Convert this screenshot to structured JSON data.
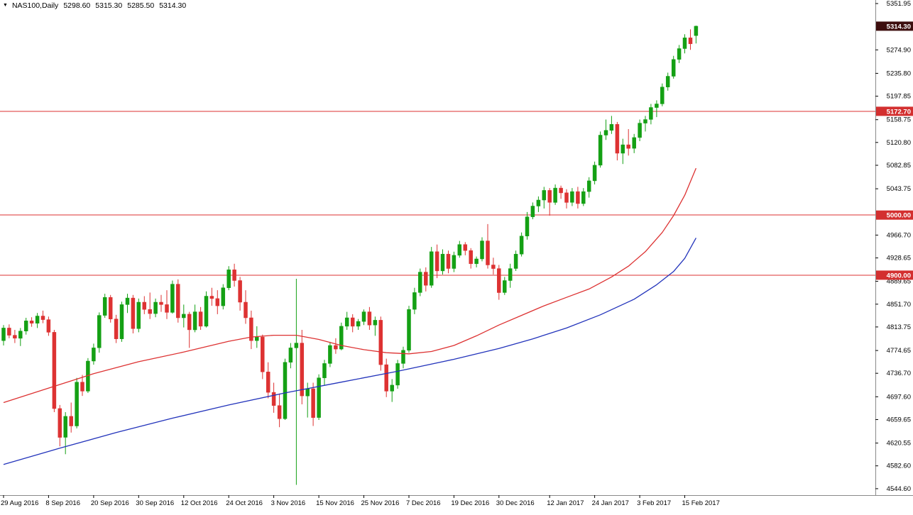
{
  "legend": {
    "marker_icon": "▼",
    "symbol": "NAS100,Daily",
    "open": "5298.60",
    "high": "5315.30",
    "low": "5285.50",
    "close": "5314.30"
  },
  "colors": {
    "background": "#ffffff",
    "up": "#14a014",
    "down": "#dd3232",
    "ma_fast": "#dd3232",
    "ma_slow": "#2233bb",
    "level_line": "#dd3232",
    "level_box_bg": "#d32f2f",
    "price_box_bg": "#3d0e0e",
    "axis_text": "#000000",
    "axis_line": "#8a8a8a"
  },
  "axis": {
    "y_ticks": [
      {
        "value": 5351.95,
        "label": "5351.95"
      },
      {
        "value": 5274.9,
        "label": "5274.90"
      },
      {
        "value": 5235.8,
        "label": "5235.80"
      },
      {
        "value": 5197.85,
        "label": "5197.85"
      },
      {
        "value": 5158.75,
        "label": "5158.75"
      },
      {
        "value": 5120.8,
        "label": "5120.80"
      },
      {
        "value": 5082.85,
        "label": "5082.85"
      },
      {
        "value": 5043.75,
        "label": "5043.75"
      },
      {
        "value": 4966.7,
        "label": "4966.70"
      },
      {
        "value": 4928.65,
        "label": "4928.65"
      },
      {
        "value": 4889.65,
        "label": "4889.65"
      },
      {
        "value": 4851.7,
        "label": "4851.70"
      },
      {
        "value": 4813.75,
        "label": "4813.75"
      },
      {
        "value": 4774.65,
        "label": "4774.65"
      },
      {
        "value": 4736.7,
        "label": "4736.70"
      },
      {
        "value": 4697.6,
        "label": "4697.60"
      },
      {
        "value": 4659.65,
        "label": "4659.65"
      },
      {
        "value": 4620.55,
        "label": "4620.55"
      },
      {
        "value": 4582.6,
        "label": "4582.60"
      },
      {
        "value": 4544.6,
        "label": "4544.60"
      }
    ],
    "price_marker": {
      "value": 5314.3,
      "label": "5314.30"
    },
    "level_markers": [
      {
        "value": 5172.7,
        "label": "5172.70"
      },
      {
        "value": 5000.0,
        "label": "5000.00"
      },
      {
        "value": 4900.0,
        "label": "4900.00"
      }
    ],
    "x_labels": [
      {
        "index": 0,
        "label": "29 Aug 2016"
      },
      {
        "index": 8,
        "label": "8 Sep 2016"
      },
      {
        "index": 16,
        "label": "20 Sep 2016"
      },
      {
        "index": 24,
        "label": "30 Sep 2016"
      },
      {
        "index": 32,
        "label": "12 Oct 2016"
      },
      {
        "index": 40,
        "label": "24 Oct 2016"
      },
      {
        "index": 48,
        "label": "3 Nov 2016"
      },
      {
        "index": 56,
        "label": "15 Nov 2016"
      },
      {
        "index": 64,
        "label": "25 Nov 2016"
      },
      {
        "index": 72,
        "label": "7 Dec 2016"
      },
      {
        "index": 80,
        "label": "19 Dec 2016"
      },
      {
        "index": 88,
        "label": "30 Dec 2016"
      },
      {
        "index": 97,
        "label": "12 Jan 2017"
      },
      {
        "index": 105,
        "label": "24 Jan 2017"
      },
      {
        "index": 113,
        "label": "3 Feb 2017"
      },
      {
        "index": 121,
        "label": "15 Feb 2017"
      }
    ]
  },
  "chart_data": {
    "type": "candlestick",
    "symbol": "NAS100",
    "timeframe": "Daily",
    "title": "NAS100,Daily 5298.60 5315.30 5285.50 5314.30",
    "ylim": [
      4533.9,
      5357.9
    ],
    "x_range_dates": [
      "29 Aug 2016",
      "17 Feb 2017"
    ],
    "current_price": 5314.3,
    "horizontal_levels": [
      5172.7,
      5000.0,
      4900.0
    ],
    "candles": [
      [
        "2016-08-29",
        4791,
        4817,
        4783,
        4812
      ],
      [
        "2016-08-30",
        4812,
        4818,
        4795,
        4800
      ],
      [
        "2016-08-31",
        4800,
        4809,
        4787,
        4795
      ],
      [
        "2016-09-01",
        4795,
        4812,
        4782,
        4807
      ],
      [
        "2016-09-02",
        4807,
        4829,
        4801,
        4824
      ],
      [
        "2016-09-05",
        4824,
        4830,
        4814,
        4820
      ],
      [
        "2016-09-06",
        4820,
        4837,
        4812,
        4832
      ],
      [
        "2016-09-07",
        4832,
        4841,
        4820,
        4826
      ],
      [
        "2016-09-08",
        4826,
        4831,
        4799,
        4805
      ],
      [
        "2016-09-09",
        4805,
        4809,
        4672,
        4678
      ],
      [
        "2016-09-12",
        4678,
        4684,
        4615,
        4630
      ],
      [
        "2016-09-13",
        4630,
        4672,
        4602,
        4665
      ],
      [
        "2016-09-14",
        4665,
        4688,
        4638,
        4649
      ],
      [
        "2016-09-15",
        4649,
        4729,
        4645,
        4722
      ],
      [
        "2016-09-16",
        4722,
        4734,
        4699,
        4707
      ],
      [
        "2016-09-19",
        4707,
        4762,
        4704,
        4757
      ],
      [
        "2016-09-20",
        4757,
        4786,
        4751,
        4779
      ],
      [
        "2016-09-21",
        4779,
        4838,
        4771,
        4833
      ],
      [
        "2016-09-22",
        4833,
        4869,
        4829,
        4863
      ],
      [
        "2016-09-23",
        4863,
        4867,
        4821,
        4827
      ],
      [
        "2016-09-26",
        4827,
        4834,
        4787,
        4794
      ],
      [
        "2016-09-27",
        4794,
        4856,
        4789,
        4851
      ],
      [
        "2016-09-28",
        4851,
        4869,
        4837,
        4862
      ],
      [
        "2016-09-29",
        4862,
        4867,
        4803,
        4811
      ],
      [
        "2016-09-30",
        4811,
        4861,
        4805,
        4855
      ],
      [
        "2016-10-03",
        4855,
        4865,
        4835,
        4843
      ],
      [
        "2016-10-04",
        4843,
        4871,
        4827,
        4836
      ],
      [
        "2016-10-05",
        4836,
        4861,
        4830,
        4855
      ],
      [
        "2016-10-06",
        4855,
        4867,
        4839,
        4851
      ],
      [
        "2016-10-07",
        4851,
        4875,
        4827,
        4838
      ],
      [
        "2016-10-10",
        4838,
        4891,
        4836,
        4885
      ],
      [
        "2016-10-11",
        4885,
        4893,
        4821,
        4829
      ],
      [
        "2016-10-12",
        4829,
        4851,
        4813,
        4835
      ],
      [
        "2016-10-13",
        4835,
        4839,
        4779,
        4809
      ],
      [
        "2016-10-14",
        4809,
        4851,
        4805,
        4839
      ],
      [
        "2016-10-17",
        4839,
        4847,
        4809,
        4815
      ],
      [
        "2016-10-18",
        4815,
        4873,
        4813,
        4865
      ],
      [
        "2016-10-19",
        4865,
        4879,
        4849,
        4861
      ],
      [
        "2016-10-20",
        4861,
        4875,
        4835,
        4849
      ],
      [
        "2016-10-21",
        4849,
        4885,
        4843,
        4879
      ],
      [
        "2016-10-24",
        4879,
        4915,
        4875,
        4909
      ],
      [
        "2016-10-25",
        4909,
        4919,
        4881,
        4891
      ],
      [
        "2016-10-26",
        4891,
        4897,
        4841,
        4855
      ],
      [
        "2016-10-27",
        4855,
        4875,
        4819,
        4829
      ],
      [
        "2016-10-28",
        4829,
        4841,
        4777,
        4791
      ],
      [
        "2016-10-31",
        4791,
        4815,
        4779,
        4797
      ],
      [
        "2016-11-01",
        4797,
        4801,
        4727,
        4739
      ],
      [
        "2016-11-02",
        4739,
        4755,
        4695,
        4705
      ],
      [
        "2016-11-03",
        4705,
        4721,
        4671,
        4683
      ],
      [
        "2016-11-04",
        4683,
        4703,
        4647,
        4661
      ],
      [
        "2016-11-07",
        4661,
        4761,
        4659,
        4755
      ],
      [
        "2016-11-08",
        4755,
        4787,
        4745,
        4779
      ],
      [
        "2016-11-09",
        4779,
        4894,
        4551,
        4787
      ],
      [
        "2016-11-10",
        4787,
        4809,
        4685,
        4699
      ],
      [
        "2016-11-11",
        4699,
        4721,
        4663,
        4711
      ],
      [
        "2016-11-14",
        4711,
        4721,
        4649,
        4663
      ],
      [
        "2016-11-15",
        4663,
        4735,
        4659,
        4729
      ],
      [
        "2016-11-16",
        4729,
        4759,
        4717,
        4753
      ],
      [
        "2016-11-17",
        4753,
        4789,
        4747,
        4783
      ],
      [
        "2016-11-18",
        4783,
        4795,
        4769,
        4777
      ],
      [
        "2016-11-21",
        4777,
        4821,
        4775,
        4815
      ],
      [
        "2016-11-22",
        4815,
        4839,
        4809,
        4829
      ],
      [
        "2016-11-23",
        4829,
        4835,
        4805,
        4815
      ],
      [
        "2016-11-24",
        4815,
        4827,
        4809,
        4823
      ],
      [
        "2016-11-25",
        4823,
        4843,
        4817,
        4839
      ],
      [
        "2016-11-28",
        4839,
        4847,
        4809,
        4817
      ],
      [
        "2016-11-29",
        4817,
        4831,
        4799,
        4825
      ],
      [
        "2016-11-30",
        4825,
        4831,
        4741,
        4751
      ],
      [
        "2016-12-01",
        4751,
        4761,
        4697,
        4707
      ],
      [
        "2016-12-02",
        4707,
        4727,
        4689,
        4717
      ],
      [
        "2016-12-05",
        4717,
        4759,
        4711,
        4753
      ],
      [
        "2016-12-06",
        4753,
        4781,
        4745,
        4775
      ],
      [
        "2016-12-07",
        4775,
        4849,
        4771,
        4843
      ],
      [
        "2016-12-08",
        4843,
        4879,
        4835,
        4871
      ],
      [
        "2016-12-09",
        4871,
        4911,
        4865,
        4905
      ],
      [
        "2016-12-12",
        4905,
        4913,
        4873,
        4883
      ],
      [
        "2016-12-13",
        4883,
        4947,
        4879,
        4939
      ],
      [
        "2016-12-14",
        4939,
        4951,
        4895,
        4907
      ],
      [
        "2016-12-15",
        4907,
        4943,
        4901,
        4935
      ],
      [
        "2016-12-16",
        4935,
        4941,
        4903,
        4911
      ],
      [
        "2016-12-19",
        4911,
        4939,
        4905,
        4933
      ],
      [
        "2016-12-20",
        4933,
        4957,
        4929,
        4951
      ],
      [
        "2016-12-21",
        4951,
        4955,
        4933,
        4941
      ],
      [
        "2016-12-22",
        4941,
        4945,
        4911,
        4919
      ],
      [
        "2016-12-23",
        4919,
        4931,
        4913,
        4927
      ],
      [
        "2016-12-27",
        4927,
        4963,
        4923,
        4957
      ],
      [
        "2016-12-28",
        4957,
        4985,
        4911,
        4917
      ],
      [
        "2016-12-29",
        4917,
        4929,
        4901,
        4911
      ],
      [
        "2016-12-30",
        4911,
        4917,
        4859,
        4871
      ],
      [
        "2017-01-02",
        4871,
        4897,
        4867,
        4891
      ],
      [
        "2017-01-03",
        4891,
        4919,
        4879,
        4911
      ],
      [
        "2017-01-04",
        4911,
        4941,
        4907,
        4935
      ],
      [
        "2017-01-05",
        4935,
        4971,
        4931,
        4965
      ],
      [
        "2017-01-06",
        4965,
        5005,
        4959,
        4997
      ],
      [
        "2017-01-09",
        4997,
        5021,
        4993,
        5015
      ],
      [
        "2017-01-10",
        5015,
        5031,
        5005,
        5025
      ],
      [
        "2017-01-11",
        5025,
        5047,
        5011,
        5041
      ],
      [
        "2017-01-12",
        5041,
        5045,
        4999,
        5021
      ],
      [
        "2017-01-13",
        5021,
        5051,
        5017,
        5045
      ],
      [
        "2017-01-16",
        5045,
        5049,
        5027,
        5037
      ],
      [
        "2017-01-17",
        5037,
        5043,
        5011,
        5021
      ],
      [
        "2017-01-18",
        5021,
        5045,
        5015,
        5039
      ],
      [
        "2017-01-19",
        5039,
        5047,
        5011,
        5019
      ],
      [
        "2017-01-20",
        5019,
        5045,
        5015,
        5039
      ],
      [
        "2017-01-23",
        5039,
        5063,
        5029,
        5057
      ],
      [
        "2017-01-24",
        5057,
        5089,
        5051,
        5083
      ],
      [
        "2017-01-25",
        5083,
        5139,
        5079,
        5133
      ],
      [
        "2017-01-26",
        5133,
        5159,
        5125,
        5141
      ],
      [
        "2017-01-27",
        5141,
        5165,
        5135,
        5151
      ],
      [
        "2017-01-30",
        5151,
        5155,
        5091,
        5103
      ],
      [
        "2017-01-31",
        5103,
        5127,
        5085,
        5117
      ],
      [
        "2017-02-01",
        5117,
        5143,
        5099,
        5111
      ],
      [
        "2017-02-02",
        5111,
        5135,
        5103,
        5129
      ],
      [
        "2017-02-03",
        5129,
        5159,
        5123,
        5153
      ],
      [
        "2017-02-06",
        5153,
        5165,
        5139,
        5159
      ],
      [
        "2017-02-07",
        5159,
        5185,
        5151,
        5179
      ],
      [
        "2017-02-08",
        5179,
        5191,
        5163,
        5185
      ],
      [
        "2017-02-09",
        5185,
        5219,
        5181,
        5213
      ],
      [
        "2017-02-10",
        5213,
        5237,
        5207,
        5231
      ],
      [
        "2017-02-13",
        5231,
        5265,
        5227,
        5259
      ],
      [
        "2017-02-14",
        5259,
        5283,
        5253,
        5277
      ],
      [
        "2017-02-15",
        5277,
        5301,
        5269,
        5295
      ],
      [
        "2017-02-16",
        5295,
        5309,
        5275,
        5285
      ],
      [
        "2017-02-17",
        5298.6,
        5315.3,
        5285.5,
        5314.3
      ]
    ],
    "moving_averages": [
      {
        "name": "ma-fast-red-line",
        "color_key": "ma_fast",
        "points": [
          [
            0,
            4688
          ],
          [
            8,
            4712
          ],
          [
            16,
            4736
          ],
          [
            24,
            4756
          ],
          [
            32,
            4772
          ],
          [
            40,
            4790
          ],
          [
            44,
            4797
          ],
          [
            48,
            4800
          ],
          [
            52,
            4800
          ],
          [
            56,
            4793
          ],
          [
            60,
            4783
          ],
          [
            64,
            4776
          ],
          [
            68,
            4771
          ],
          [
            72,
            4769
          ],
          [
            76,
            4773
          ],
          [
            80,
            4783
          ],
          [
            84,
            4799
          ],
          [
            88,
            4817
          ],
          [
            92,
            4833
          ],
          [
            96,
            4849
          ],
          [
            100,
            4863
          ],
          [
            104,
            4877
          ],
          [
            108,
            4897
          ],
          [
            111,
            4915
          ],
          [
            114,
            4939
          ],
          [
            117,
            4971
          ],
          [
            119,
            4999
          ],
          [
            121,
            5033
          ],
          [
            123,
            5078
          ]
        ]
      },
      {
        "name": "ma-slow-blue-line",
        "color_key": "ma_slow",
        "points": [
          [
            0,
            4585
          ],
          [
            10,
            4612
          ],
          [
            20,
            4638
          ],
          [
            30,
            4662
          ],
          [
            40,
            4684
          ],
          [
            50,
            4704
          ],
          [
            60,
            4722
          ],
          [
            70,
            4740
          ],
          [
            80,
            4760
          ],
          [
            88,
            4778
          ],
          [
            94,
            4794
          ],
          [
            100,
            4812
          ],
          [
            106,
            4834
          ],
          [
            112,
            4860
          ],
          [
            116,
            4884
          ],
          [
            119,
            4906
          ],
          [
            121,
            4928
          ],
          [
            123,
            4962
          ]
        ]
      }
    ]
  }
}
